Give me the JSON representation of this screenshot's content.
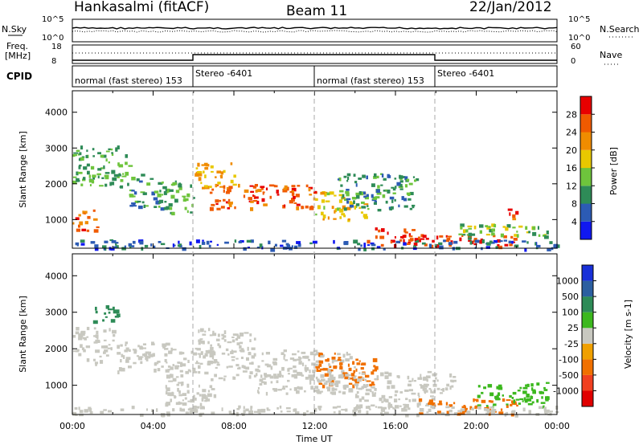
{
  "header": {
    "station": "Hankasalmi (fitACF)",
    "beam": "Beam 11",
    "date": "22/Jan/2012"
  },
  "panels": {
    "nsky": {
      "left_label": "N.Sky",
      "right_label": "N.Search",
      "tick_top": "10^5",
      "tick_bottom": "10^0",
      "right_tick_top": "10^5",
      "right_tick_bottom": "10^0"
    },
    "freq": {
      "label_line1": "Freq.",
      "label_line2": "[MHz]",
      "tick_top": "18",
      "tick_bottom": "8",
      "right_label": "Nave",
      "right_tick_top": "60",
      "right_tick_bottom": "0"
    },
    "cpid": {
      "label": "CPID",
      "segments": [
        {
          "text": "normal (fast stereo) 153",
          "start_hour": 0
        },
        {
          "text": "Stereo -6401",
          "start_hour": 6
        },
        {
          "text": "normal (fast stereo) 153",
          "start_hour": 12
        },
        {
          "text": "Stereo -6401",
          "start_hour": 18
        }
      ]
    }
  },
  "axes": {
    "ylabel": "Slant Range [km]",
    "yticks": [
      "1000",
      "2000",
      "3000",
      "4000"
    ],
    "xlabel": "Time UT",
    "xticks": [
      "00:00",
      "04:00",
      "08:00",
      "12:00",
      "16:00",
      "20:00",
      "00:00"
    ]
  },
  "colorbars": {
    "power": {
      "label": "Power [dB]",
      "ticks": [
        "4",
        "8",
        "12",
        "16",
        "20",
        "24",
        "28"
      ],
      "colors": [
        "#1018f0",
        "#2c5bb4",
        "#2e8b57",
        "#6ec43c",
        "#e8c800",
        "#f08c00",
        "#f05a00",
        "#e80000"
      ]
    },
    "velocity": {
      "label": "Velocity [m s-1]",
      "ticks": [
        "1000",
        "500",
        "100",
        "25",
        "-25",
        "-100",
        "-500",
        "-1000"
      ],
      "colors": [
        "#1830d8",
        "#2c5fa0",
        "#2e8b57",
        "#3cb81e",
        "#c8c8c0",
        "#f0a000",
        "#f07000",
        "#f04020",
        "#e00000"
      ]
    }
  },
  "chart_data": [
    {
      "type": "heatmap",
      "title": "Power",
      "x_units": "hours UT",
      "xlim": [
        0,
        24
      ],
      "ylim": [
        200,
        4600
      ],
      "y_units": "km",
      "regions": [
        {
          "x": [
            0.0,
            1.2
          ],
          "y": [
            700,
            1300
          ],
          "value": 26
        },
        {
          "x": [
            0.0,
            2.8
          ],
          "y": [
            1900,
            3100
          ],
          "value": 12
        },
        {
          "x": [
            2.8,
            4.5
          ],
          "y": [
            1300,
            2300
          ],
          "value": 10
        },
        {
          "x": [
            4.5,
            6.0
          ],
          "y": [
            1200,
            2100
          ],
          "value": 12
        },
        {
          "x": [
            6.0,
            8.0
          ],
          "y": [
            1900,
            2600
          ],
          "value": 20
        },
        {
          "x": [
            6.8,
            12.0
          ],
          "y": [
            1300,
            2000
          ],
          "value": 26
        },
        {
          "x": [
            12.0,
            14.5
          ],
          "y": [
            1000,
            1800
          ],
          "value": 18
        },
        {
          "x": [
            13.0,
            17.0
          ],
          "y": [
            1300,
            2300
          ],
          "value": 10
        },
        {
          "x": [
            14.5,
            17.0
          ],
          "y": [
            300,
            800
          ],
          "value": 28
        },
        {
          "x": [
            17.0,
            22.0
          ],
          "y": [
            250,
            600
          ],
          "value": 28
        },
        {
          "x": [
            19.0,
            23.5
          ],
          "y": [
            500,
            900
          ],
          "value": 14
        },
        {
          "x": [
            21.5,
            22.0
          ],
          "y": [
            1000,
            1400
          ],
          "value": 26
        },
        {
          "x": [
            0.0,
            24.0
          ],
          "y": [
            200,
            450
          ],
          "value": 6
        }
      ]
    },
    {
      "type": "heatmap",
      "title": "Velocity",
      "x_units": "hours UT",
      "xlim": [
        0,
        24
      ],
      "ylim": [
        200,
        4600
      ],
      "y_units": "km",
      "regions": [
        {
          "x": [
            0.0,
            2.0
          ],
          "y": [
            1600,
            2600
          ],
          "value": 0
        },
        {
          "x": [
            2.0,
            5.0
          ],
          "y": [
            1400,
            2200
          ],
          "value": 0
        },
        {
          "x": [
            1.0,
            2.2
          ],
          "y": [
            2700,
            3200
          ],
          "value": 150
        },
        {
          "x": [
            4.5,
            7.0
          ],
          "y": [
            500,
            2000
          ],
          "value": 0
        },
        {
          "x": [
            6.0,
            9.0
          ],
          "y": [
            1900,
            2600
          ],
          "value": 0
        },
        {
          "x": [
            6.5,
            14.0
          ],
          "y": [
            1200,
            2000
          ],
          "value": -20
        },
        {
          "x": [
            12.0,
            15.0
          ],
          "y": [
            1000,
            1900
          ],
          "value": -120
        },
        {
          "x": [
            9.0,
            19.0
          ],
          "y": [
            800,
            1400
          ],
          "value": 0
        },
        {
          "x": [
            14.0,
            18.0
          ],
          "y": [
            300,
            900
          ],
          "value": 0
        },
        {
          "x": [
            17.0,
            22.0
          ],
          "y": [
            250,
            650
          ],
          "value": -150
        },
        {
          "x": [
            20.0,
            23.5
          ],
          "y": [
            400,
            1100
          ],
          "value": 60
        },
        {
          "x": [
            0.0,
            24.0
          ],
          "y": [
            200,
            450
          ],
          "value": 20
        }
      ]
    }
  ]
}
